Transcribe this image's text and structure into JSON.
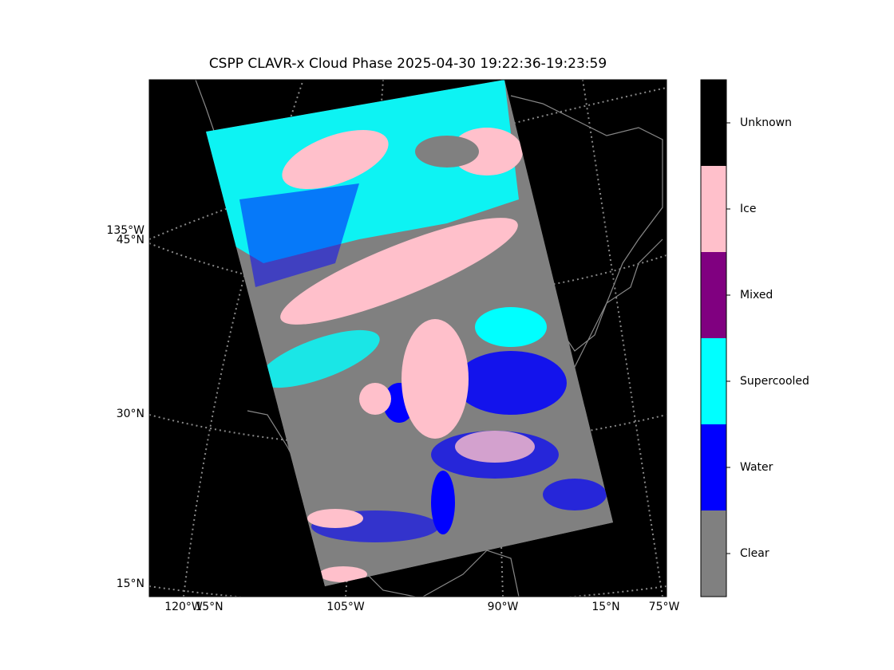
{
  "title": "CSPP CLAVR-x Cloud Phase 2025-04-30 19:22:36-19:23:59",
  "map": {
    "left_labels": [
      "135°W",
      "45°N",
      "30°N",
      "15°N"
    ],
    "bottom_labels": [
      "120°W",
      "15°N",
      "105°W",
      "90°W",
      "15°N",
      "75°W"
    ]
  },
  "colorbar": {
    "classes": [
      {
        "label": "Clear",
        "color": "#808080"
      },
      {
        "label": "Water",
        "color": "#0000ff"
      },
      {
        "label": "Supercooled",
        "color": "#00ffff"
      },
      {
        "label": "Mixed",
        "color": "#800080"
      },
      {
        "label": "Ice",
        "color": "#ffc0cb"
      },
      {
        "label": "Unknown",
        "color": "#000000"
      }
    ]
  }
}
